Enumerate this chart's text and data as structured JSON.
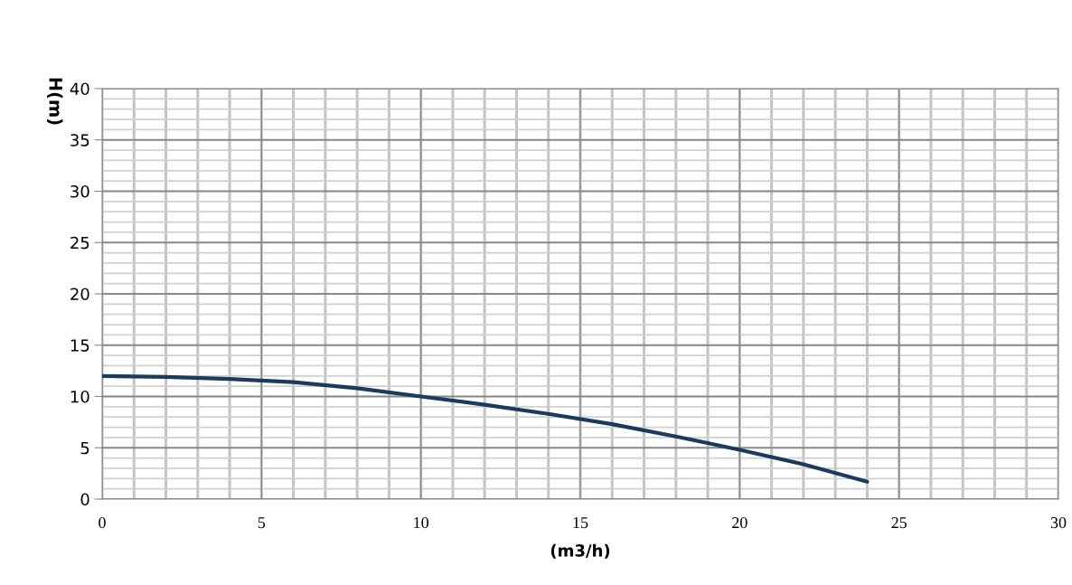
{
  "chart_data": {
    "type": "line",
    "xlabel": "(m3/h)",
    "ylabel": "H(m)",
    "x": [
      0,
      2,
      4,
      6,
      8,
      10,
      12,
      14,
      16,
      18,
      20,
      22,
      24
    ],
    "series": [
      {
        "color": "#1b3a5e",
        "values": [
          12.0,
          11.9,
          11.7,
          11.4,
          10.8,
          10.0,
          9.2,
          8.3,
          7.3,
          6.1,
          4.8,
          3.4,
          1.7
        ]
      }
    ],
    "xlim": [
      0,
      30
    ],
    "xticks": [
      0,
      5,
      10,
      15,
      20,
      25,
      30
    ],
    "ylim": [
      0,
      40
    ],
    "yticks": [
      0,
      5,
      10,
      15,
      20,
      25,
      30,
      35,
      40
    ],
    "grid": true,
    "marker": "none",
    "line_style": "solid"
  }
}
